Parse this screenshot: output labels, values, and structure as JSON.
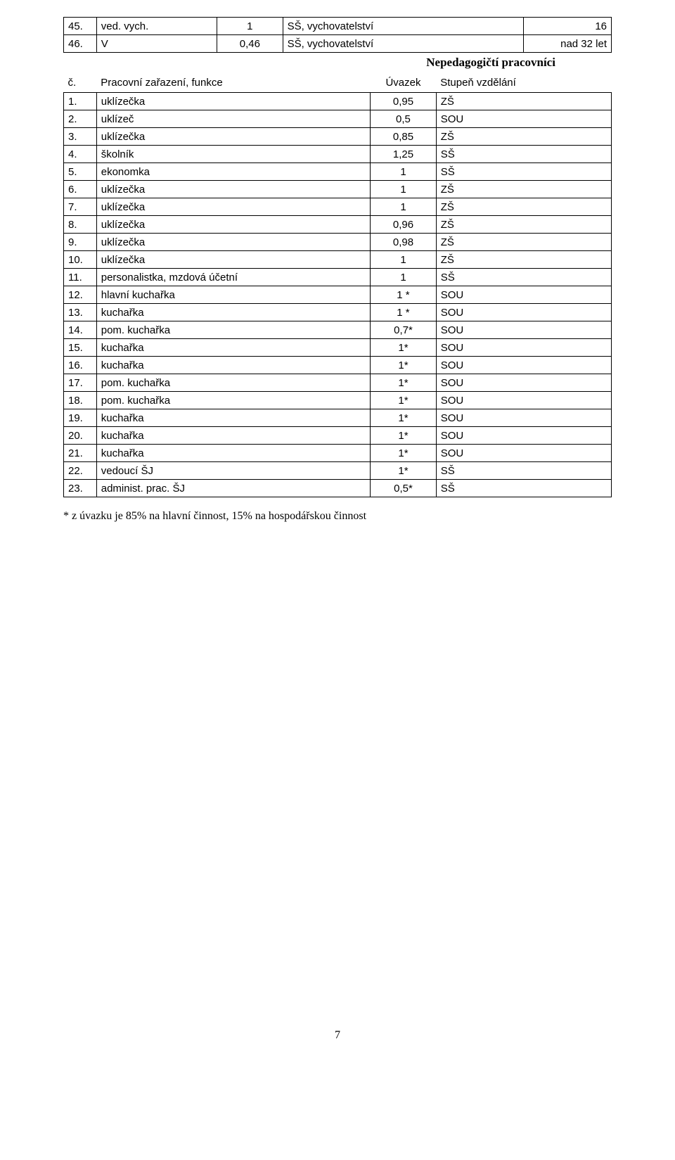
{
  "table1": {
    "rows": [
      {
        "num": "45.",
        "name": "ved. vych.",
        "val": "1",
        "deg": "SŠ, vychovatelství",
        "extra": "16"
      },
      {
        "num": "46.",
        "name": "V",
        "val": "0,46",
        "deg": "SŠ, vychovatelství",
        "extra": "nad 32 let"
      }
    ]
  },
  "section_title": "Nepedagogičtí pracovníci",
  "table2": {
    "header": {
      "num": "č.",
      "name": "Pracovní zařazení, funkce",
      "val": "Úvazek",
      "deg": "Stupeň vzdělání"
    },
    "rows": [
      {
        "num": "1.",
        "name": "uklízečka",
        "val": "0,95",
        "deg": "ZŠ"
      },
      {
        "num": "2.",
        "name": "uklízeč",
        "val": "0,5",
        "deg": "SOU"
      },
      {
        "num": "3.",
        "name": "uklízečka",
        "val": "0,85",
        "deg": "ZŠ"
      },
      {
        "num": "4.",
        "name": "školník",
        "val": "1,25",
        "deg": "SŠ"
      },
      {
        "num": "5.",
        "name": "ekonomka",
        "val": "1",
        "deg": "SŠ"
      },
      {
        "num": "6.",
        "name": "uklízečka",
        "val": "1",
        "deg": "ZŠ"
      },
      {
        "num": "7.",
        "name": "uklízečka",
        "val": "1",
        "deg": "ZŠ"
      },
      {
        "num": "8.",
        "name": "uklízečka",
        "val": "0,96",
        "deg": "ZŠ"
      },
      {
        "num": "9.",
        "name": "uklízečka",
        "val": "0,98",
        "deg": "ZŠ"
      },
      {
        "num": "10.",
        "name": "uklízečka",
        "val": "1",
        "deg": "ZŠ"
      },
      {
        "num": "11.",
        "name": "personalistka, mzdová účetní",
        "val": "1",
        "deg": "SŠ"
      },
      {
        "num": "12.",
        "name": "hlavní kuchařka",
        "val": "1 *",
        "deg": "SOU"
      },
      {
        "num": "13.",
        "name": "kuchařka",
        "val": "1 *",
        "deg": "SOU"
      },
      {
        "num": "14.",
        "name": "pom. kuchařka",
        "val": "0,7*",
        "deg": "SOU"
      },
      {
        "num": "15.",
        "name": "kuchařka",
        "val": "1*",
        "deg": "SOU"
      },
      {
        "num": "16.",
        "name": "kuchařka",
        "val": "1*",
        "deg": "SOU"
      },
      {
        "num": "17.",
        "name": "pom. kuchařka",
        "val": "1*",
        "deg": "SOU"
      },
      {
        "num": "18.",
        "name": "pom. kuchařka",
        "val": "1*",
        "deg": "SOU"
      },
      {
        "num": "19.",
        "name": "kuchařka",
        "val": "1*",
        "deg": "SOU"
      },
      {
        "num": "20.",
        "name": "kuchařka",
        "val": "1*",
        "deg": "SOU"
      },
      {
        "num": "21.",
        "name": "kuchařka",
        "val": "1*",
        "deg": "SOU"
      },
      {
        "num": "22.",
        "name": "vedoucí ŠJ",
        "val": "1*",
        "deg": "SŠ"
      },
      {
        "num": "23.",
        "name": "administ. prac. ŠJ",
        "val": "0,5*",
        "deg": "SŠ"
      }
    ]
  },
  "footnote": "* z úvazku je 85% na hlavní činnost, 15% na hospodářskou činnost",
  "page_number": "7"
}
